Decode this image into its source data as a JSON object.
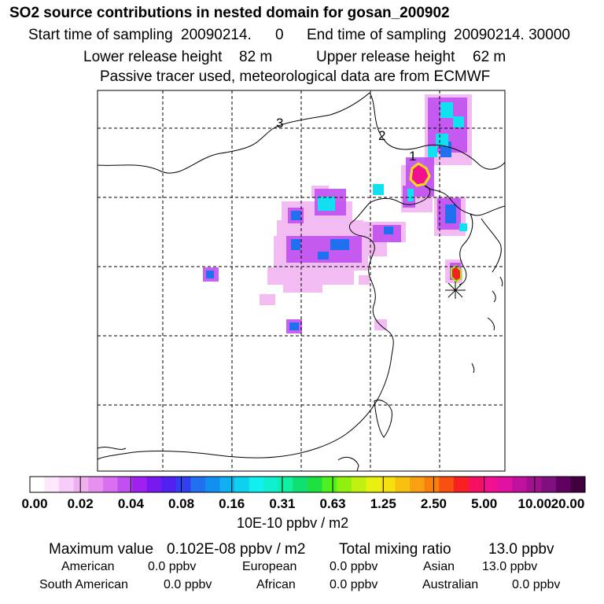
{
  "header": {
    "title": "SO2 source contributions in nested domain for gosan_200902",
    "start_label": "Start time of sampling",
    "start_value": "20090214.",
    "start_time": "0",
    "end_label": "End time of sampling",
    "end_value": "20090214. 30000",
    "lower_label": "Lower release height",
    "lower_value": "82 m",
    "upper_label": "Upper release height",
    "upper_value": "62 m",
    "note": "Passive tracer used, meteorological data are from ECMWF"
  },
  "map": {
    "region_labels": [
      "1",
      "2",
      "3"
    ]
  },
  "colorbar": {
    "tick_labels": [
      "0.00",
      "0.02",
      "0.04",
      "0.08",
      "0.16",
      "0.31",
      "0.63",
      "1.25",
      "2.50",
      "5.00",
      "10.00",
      "20.00"
    ],
    "units": "10E-10 ppbv / m2",
    "colors": [
      "#ffffff",
      "#fde8fd",
      "#f8ccf8",
      "#f0b0f0",
      "#e890f0",
      "#d870f0",
      "#c050f0",
      "#a020f0",
      "#7a18f0",
      "#5020f0",
      "#3040f0",
      "#2070f0",
      "#1090f0",
      "#10b0f0",
      "#10d0f0",
      "#10f0f0",
      "#10f0d0",
      "#10f0a0",
      "#10e070",
      "#20e040",
      "#50f020",
      "#90f010",
      "#c0f010",
      "#e8f010",
      "#f8e010",
      "#f8c010",
      "#f8a010",
      "#f88010",
      "#f85010",
      "#f82020",
      "#f81060",
      "#f01090",
      "#e010a0",
      "#c010a0",
      "#a01090",
      "#801080",
      "#600060",
      "#400040"
    ]
  },
  "summary": {
    "max_label": "Maximum value",
    "max_value": "0.102E-08 ppbv / m2",
    "total_label": "Total mixing ratio",
    "total_value": "13.0 ppbv",
    "american_label": "American",
    "american_value": "0.0 ppbv",
    "european_label": "European",
    "european_value": "0.0 ppbv",
    "asian_label": "Asian",
    "asian_value": "13.0 ppbv",
    "south_american_label": "South American",
    "south_american_value": "0.0 ppbv",
    "african_label": "African",
    "african_value": "0.0 ppbv",
    "australian_label": "Australian",
    "australian_value": "0.0 ppbv"
  }
}
